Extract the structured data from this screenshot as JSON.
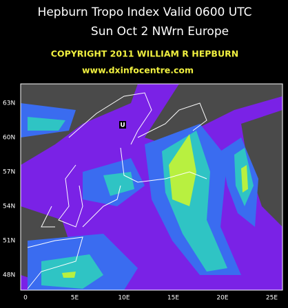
{
  "header": {
    "title": "Hepburn Tropo Index Valid 0600 UTC",
    "subtitle": "Sun Oct 2 NWrn Europe",
    "copyright": "COPYRIGHT 2011  WILLIAM R HEPBURN",
    "url": "www.dxinfocentre.com"
  },
  "map": {
    "marker": "U",
    "latitudes": [
      "63N",
      "60N",
      "57N",
      "54N",
      "51N",
      "48N"
    ],
    "longitudes": [
      "0",
      "5E",
      "10E",
      "15E",
      "20E",
      "25E"
    ]
  }
}
